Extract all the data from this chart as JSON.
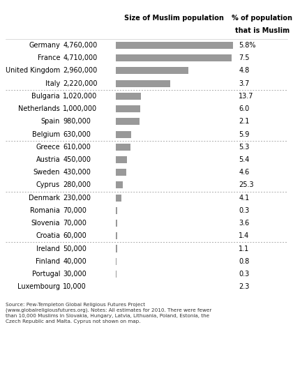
{
  "title": "Size of Muslim population",
  "col2_header_line1": "% of population",
  "col2_header_line2": "that is Muslim",
  "countries": [
    "Germany",
    "France",
    "United Kingdom",
    "Italy",
    "Bulgaria",
    "Netherlands",
    "Spain",
    "Belgium",
    "Greece",
    "Austria",
    "Sweden",
    "Cyprus",
    "Denmark",
    "Romania",
    "Slovenia",
    "Croatia",
    "Ireland",
    "Finland",
    "Portugal",
    "Luxembourg"
  ],
  "populations": [
    4760000,
    4710000,
    2960000,
    2220000,
    1020000,
    1000000,
    980000,
    630000,
    610000,
    450000,
    430000,
    280000,
    230000,
    70000,
    70000,
    60000,
    50000,
    40000,
    30000,
    10000
  ],
  "pop_labels": [
    "4,760,000",
    "4,710,000",
    "2,960,000",
    "2,220,000",
    "1,020,000",
    "1,000,000",
    "980,000",
    "630,000",
    "610,000",
    "450,000",
    "430,000",
    "280,000",
    "230,000",
    "70,000",
    "70,000",
    "60,000",
    "50,000",
    "40,000",
    "30,000",
    "10,000"
  ],
  "pct_labels": [
    "5.8%",
    "7.5",
    "4.8",
    "3.7",
    "13.7",
    "6.0",
    "2.1",
    "5.9",
    "5.3",
    "5.4",
    "4.6",
    "25.3",
    "4.1",
    "0.3",
    "3.6",
    "1.4",
    "1.1",
    "0.8",
    "0.3",
    "2.3"
  ],
  "group_separators_after": [
    3,
    7,
    11,
    15
  ],
  "bar_color": "#999999",
  "bg_color": "#ffffff",
  "source_text": "Source: Pew-Templeton Global Religious Futures Project\n(www.globalreligiousfutures.org). Notes: All estimates for 2010. There were fewer\nthan 10,000 Muslims in Slovakia, Hungary, Latvia, Lithuania, Poland, Estonia, the\nCzech Republic and Malta. Cyprus not shown on map."
}
